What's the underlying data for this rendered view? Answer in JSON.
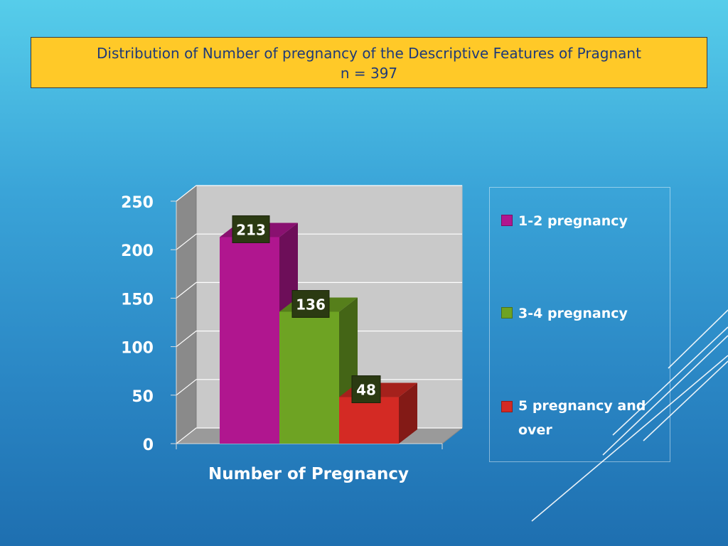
{
  "slide": {
    "title_line1": "Distribution of Number of pregnancy of the Descriptive Features of Pragnant",
    "title_line2": "n = 397"
  },
  "chart_data": {
    "type": "bar",
    "title": "Distribution of Number of pregnancy of the Descriptive Features of Pragnant",
    "subtitle": "n = 397",
    "xlabel": "Number of Pregnancy",
    "ylabel": "",
    "ylim": [
      0,
      250
    ],
    "yticks": [
      0,
      50,
      100,
      150,
      200,
      250
    ],
    "grid": true,
    "legend_position": "right",
    "series": [
      {
        "name": "1-2 pregnancy",
        "values": [
          213
        ],
        "color": "#b0168f",
        "label": "213"
      },
      {
        "name": "3-4 pregnancy",
        "values": [
          136
        ],
        "color": "#6ea323",
        "label": "136"
      },
      {
        "name": "5 pregnancy and over",
        "values": [
          48
        ],
        "color": "#d42a24",
        "label": "48"
      }
    ],
    "categories": [
      "Number of Pregnancy"
    ]
  }
}
